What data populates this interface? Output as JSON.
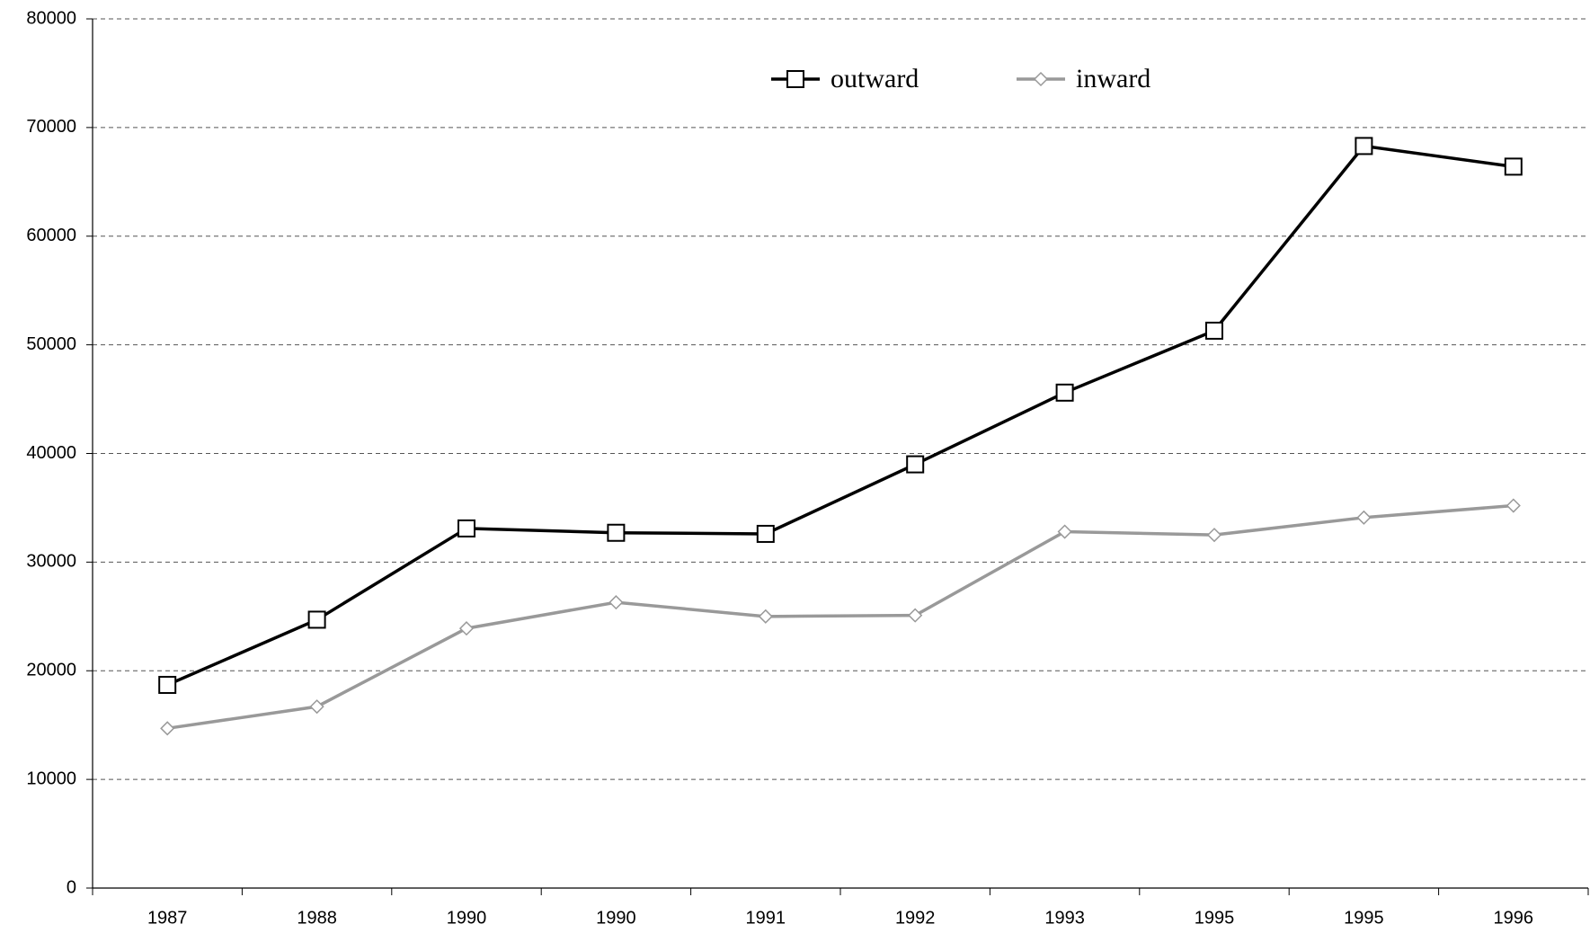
{
  "chart_data": {
    "type": "line",
    "categories": [
      "1987",
      "1988",
      "1990",
      "1990",
      "1991",
      "1992",
      "1993",
      "1995",
      "1995",
      "1996"
    ],
    "series": [
      {
        "name": "outward",
        "color": "#000000",
        "marker": "square",
        "values": [
          18700,
          24700,
          33100,
          32700,
          32600,
          39000,
          45600,
          51300,
          68300,
          66400
        ]
      },
      {
        "name": "inward",
        "color": "#999999",
        "marker": "diamond",
        "values": [
          14700,
          16700,
          23900,
          26300,
          25000,
          25100,
          32800,
          32500,
          34100,
          35200
        ]
      }
    ],
    "ylim": [
      0,
      80000
    ],
    "yticks": [
      0,
      10000,
      20000,
      30000,
      40000,
      50000,
      60000,
      70000,
      80000
    ],
    "grid": true,
    "legend": "top"
  }
}
